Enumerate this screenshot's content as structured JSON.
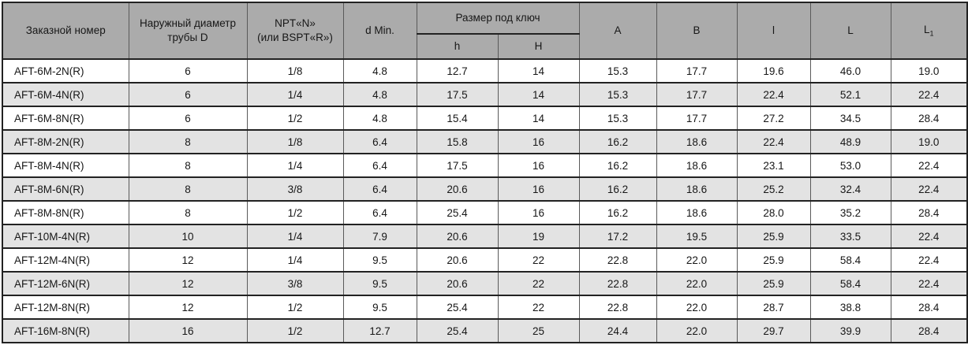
{
  "header": {
    "order_number": "Заказной номер",
    "outer_diameter": [
      "Наружный диаметр",
      "трубы D"
    ],
    "thread": [
      "NPT«N»",
      "(или BSPT«R»)"
    ],
    "d_min": "d Min.",
    "wrench_group": "Размер под ключ",
    "wrench_h": "h",
    "wrench_H": "H",
    "col_A": "A",
    "col_B": "B",
    "col_l": "l",
    "col_L": "L",
    "col_L1_main": "L",
    "col_L1_sub": "1"
  },
  "rows": [
    [
      "AFT-6M-2N(R)",
      "6",
      "1/8",
      "4.8",
      "12.7",
      "14",
      "15.3",
      "17.7",
      "19.6",
      "46.0",
      "19.0"
    ],
    [
      "AFT-6M-4N(R)",
      "6",
      "1/4",
      "4.8",
      "17.5",
      "14",
      "15.3",
      "17.7",
      "22.4",
      "52.1",
      "22.4"
    ],
    [
      "AFT-6M-8N(R)",
      "6",
      "1/2",
      "4.8",
      "15.4",
      "14",
      "15.3",
      "17.7",
      "27.2",
      "34.5",
      "28.4"
    ],
    [
      "AFT-8M-2N(R)",
      "8",
      "1/8",
      "6.4",
      "15.8",
      "16",
      "16.2",
      "18.6",
      "22.4",
      "48.9",
      "19.0"
    ],
    [
      "AFT-8M-4N(R)",
      "8",
      "1/4",
      "6.4",
      "17.5",
      "16",
      "16.2",
      "18.6",
      "23.1",
      "53.0",
      "22.4"
    ],
    [
      "AFT-8M-6N(R)",
      "8",
      "3/8",
      "6.4",
      "20.6",
      "16",
      "16.2",
      "18.6",
      "25.2",
      "32.4",
      "22.4"
    ],
    [
      "AFT-8M-8N(R)",
      "8",
      "1/2",
      "6.4",
      "25.4",
      "16",
      "16.2",
      "18.6",
      "28.0",
      "35.2",
      "28.4"
    ],
    [
      "AFT-10M-4N(R)",
      "10",
      "1/4",
      "7.9",
      "20.6",
      "19",
      "17.2",
      "19.5",
      "25.9",
      "33.5",
      "22.4"
    ],
    [
      "AFT-12M-4N(R)",
      "12",
      "1/4",
      "9.5",
      "20.6",
      "22",
      "22.8",
      "22.0",
      "25.9",
      "58.4",
      "22.4"
    ],
    [
      "AFT-12M-6N(R)",
      "12",
      "3/8",
      "9.5",
      "20.6",
      "22",
      "22.8",
      "22.0",
      "25.9",
      "58.4",
      "22.4"
    ],
    [
      "AFT-12M-8N(R)",
      "12",
      "1/2",
      "9.5",
      "25.4",
      "22",
      "22.8",
      "22.0",
      "28.7",
      "38.8",
      "28.4"
    ],
    [
      "AFT-16M-8N(R)",
      "16",
      "1/2",
      "12.7",
      "25.4",
      "25",
      "24.4",
      "22.0",
      "29.7",
      "39.9",
      "28.4"
    ]
  ],
  "colors": {
    "header_bg": "#ababab",
    "alt_row_bg": "#e3e3e3",
    "row_bg": "#ffffff",
    "grid_vertical": "#5a5a5a",
    "grid_horizontal": "#222222",
    "text": "#171717"
  }
}
